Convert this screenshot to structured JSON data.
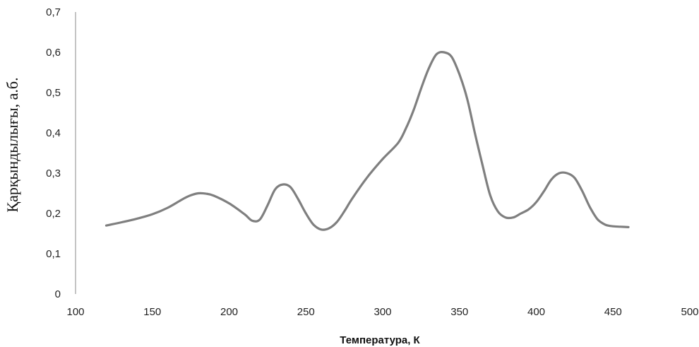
{
  "chart_data": {
    "type": "line",
    "title": "",
    "xlabel": "Температура, К",
    "ylabel": "Қарқындылығы, а.б.",
    "xlim": [
      100,
      500
    ],
    "ylim": [
      0,
      0.7
    ],
    "x_ticks": [
      100,
      150,
      200,
      250,
      300,
      350,
      400,
      450,
      500
    ],
    "y_ticks": [
      0,
      0.1,
      0.2,
      0.3,
      0.4,
      0.5,
      0.6,
      0.7
    ],
    "x_tick_labels": [
      "100",
      "150",
      "200",
      "250",
      "300",
      "350",
      "400",
      "450",
      "500"
    ],
    "y_tick_labels": [
      "0",
      "0,1",
      "0,2",
      "0,3",
      "0,4",
      "0,5",
      "0,6",
      "0,7"
    ],
    "grid": false,
    "legend": "none",
    "line_color": "#7f7f7f",
    "series": [
      {
        "x": [
          120,
          130,
          140,
          150,
          160,
          170,
          175,
          180,
          185,
          190,
          200,
          210,
          215,
          220,
          225,
          230,
          235,
          240,
          245,
          250,
          255,
          260,
          265,
          270,
          275,
          280,
          290,
          300,
          310,
          315,
          320,
          325,
          330,
          335,
          340,
          345,
          350,
          355,
          360,
          365,
          370,
          375,
          380,
          385,
          390,
          395,
          400,
          405,
          410,
          415,
          420,
          425,
          430,
          435,
          440,
          445,
          450,
          455,
          460
        ],
        "y": [
          0.17,
          0.178,
          0.187,
          0.198,
          0.214,
          0.236,
          0.245,
          0.25,
          0.249,
          0.244,
          0.225,
          0.198,
          0.182,
          0.185,
          0.22,
          0.26,
          0.272,
          0.265,
          0.235,
          0.2,
          0.172,
          0.16,
          0.163,
          0.178,
          0.205,
          0.236,
          0.29,
          0.335,
          0.375,
          0.41,
          0.455,
          0.51,
          0.56,
          0.595,
          0.6,
          0.588,
          0.545,
          0.485,
          0.4,
          0.32,
          0.245,
          0.205,
          0.19,
          0.19,
          0.2,
          0.21,
          0.228,
          0.255,
          0.285,
          0.3,
          0.3,
          0.288,
          0.255,
          0.215,
          0.185,
          0.172,
          0.168,
          0.167,
          0.166
        ]
      }
    ]
  }
}
